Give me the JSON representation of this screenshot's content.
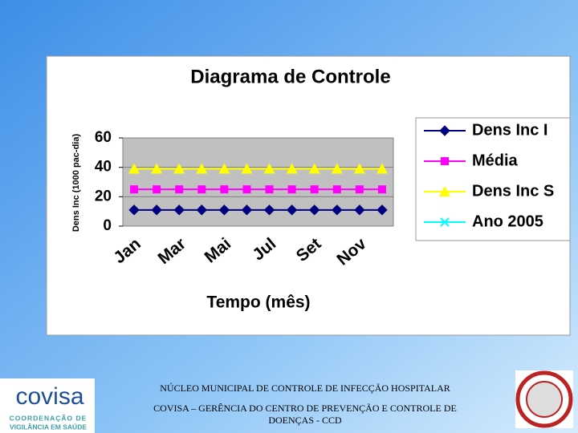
{
  "chart_data": {
    "type": "line",
    "title": "Diagrama de Controle",
    "x_label": "Tempo (mês)",
    "y_label": "Dens Inc (1000 pac-dia)",
    "categories": [
      "Jan",
      null,
      "Mar",
      null,
      "Mai",
      null,
      "Jul",
      null,
      "Set",
      null,
      "Nov",
      null
    ],
    "series": [
      {
        "name": "Dens Inc I",
        "color": "#000080",
        "marker": "diamond",
        "values": [
          11,
          11,
          11,
          11,
          11,
          11,
          11,
          11,
          11,
          11,
          11,
          11
        ]
      },
      {
        "name": "Média",
        "color": "#ff00ff",
        "marker": "square",
        "values": [
          25,
          25,
          25,
          25,
          25,
          25,
          25,
          25,
          25,
          25,
          25,
          25
        ]
      },
      {
        "name": "Dens Inc S",
        "color": "#ffff00",
        "marker": "triangle",
        "values": [
          39,
          39,
          39,
          39,
          39,
          39,
          39,
          39,
          39,
          39,
          39,
          39
        ]
      },
      {
        "name": "Ano 2005",
        "color": "#00ffff",
        "marker": "x",
        "values": [
          null,
          null,
          null,
          null,
          null,
          null,
          null,
          null,
          null,
          null,
          null,
          null
        ]
      }
    ],
    "ylim": [
      0,
      60
    ],
    "yticks": [
      0,
      20,
      40,
      60
    ],
    "grid": true,
    "legend": "right"
  },
  "footer": {
    "line1": "NÚCLEO MUNICIPAL DE CONTROLE DE INFECÇÃO HOSPITALAR",
    "line2": "COVISA – GERÊNCIA DO CENTRO DE PREVENÇÃO E CONTROLE DE",
    "line3": "DOENÇAS - CCD"
  },
  "logo": {
    "name": "covisa",
    "line1": "COORDENAÇÃO DE",
    "line2": "VIGILÂNCIA EM SAÚDE"
  }
}
